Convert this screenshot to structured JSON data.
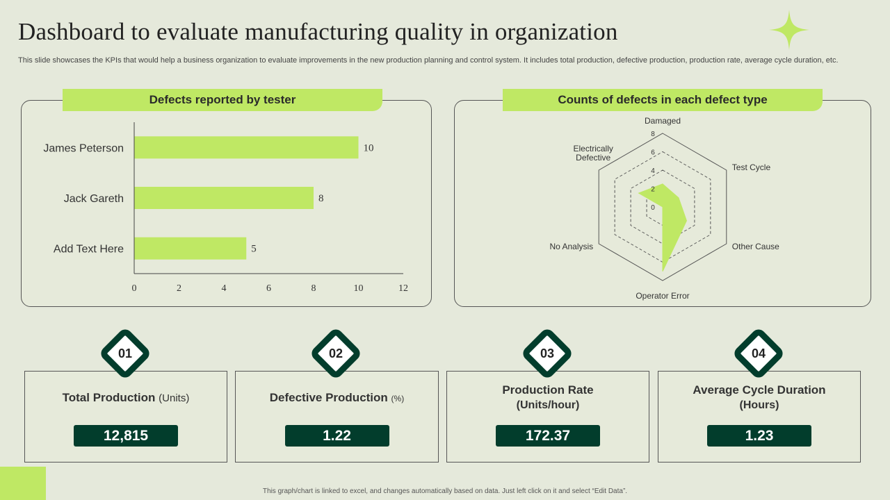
{
  "title": "Dashboard to evaluate manufacturing quality in organization",
  "subtitle": "This slide showcases the KPIs that would help a business organization to evaluate improvements in the new production planning and control system. It includes total production, defective production, production rate, average cycle duration, etc.",
  "colors": {
    "accent": "#bfe864",
    "dark": "#023d2c",
    "background": "#e5e9db"
  },
  "chart_data": [
    {
      "type": "bar",
      "orientation": "horizontal",
      "title": "Defects reported by tester",
      "categories": [
        "James Peterson",
        "Jack Gareth",
        "Add Text Here"
      ],
      "values": [
        10,
        8,
        5
      ],
      "xlim": [
        0,
        12
      ],
      "ticks": [
        0,
        2,
        4,
        6,
        8,
        10,
        12
      ],
      "color": "#bfe864",
      "grid": false
    },
    {
      "type": "radar",
      "title": "Counts of defects in each defect type",
      "categories": [
        "Damaged",
        "Test Cycle",
        "Other Cause",
        "Operator Error",
        "No Analysis",
        "Electrically Defective"
      ],
      "values": [
        2.5,
        2,
        3,
        7,
        0,
        3
      ],
      "rlim": [
        0,
        8
      ],
      "ticks": [
        0,
        2,
        4,
        6,
        8
      ],
      "color": "#bfe864"
    }
  ],
  "kpis": [
    {
      "number": "01",
      "label": "Total Production",
      "unit": "(Units)",
      "value": "12,815"
    },
    {
      "number": "02",
      "label": "Defective Production",
      "unit": "(%)",
      "value": "1.22"
    },
    {
      "number": "03",
      "label": "Production Rate",
      "unit": "(Units/hour)",
      "value": "172.37"
    },
    {
      "number": "04",
      "label": "Average Cycle Duration",
      "unit": "(Hours)",
      "value": "1.23"
    }
  ],
  "footer": "This graph/chart is linked to excel, and changes automatically based on data. Just left click on it and select “Edit Data”."
}
